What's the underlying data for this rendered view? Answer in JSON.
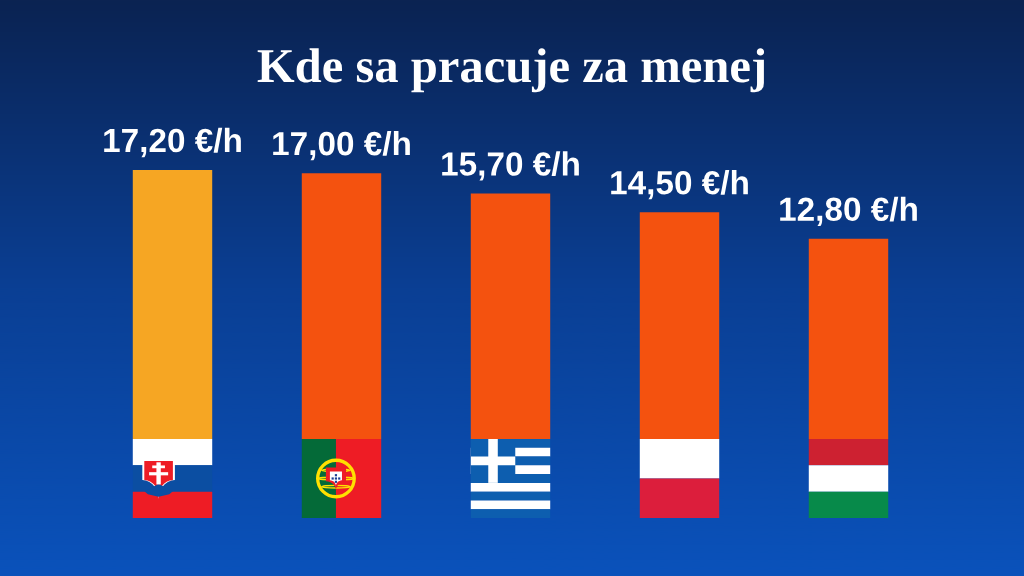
{
  "chart_data": {
    "type": "bar",
    "title": "Kde sa pracuje za menej",
    "categories": [
      null,
      null,
      null,
      null,
      null
    ],
    "values": [
      17.2,
      17.0,
      15.7,
      14.5,
      12.8
    ],
    "colors": [
      "#f6a623",
      "#f4520f",
      "#f4520f",
      "#f4520f",
      "#f4520f"
    ],
    "value_labels": [
      "17,20 €/h",
      "17,00 €/h",
      "15,70 €/h",
      "14,50 €/h",
      "12,80 €/h"
    ]
  }
}
